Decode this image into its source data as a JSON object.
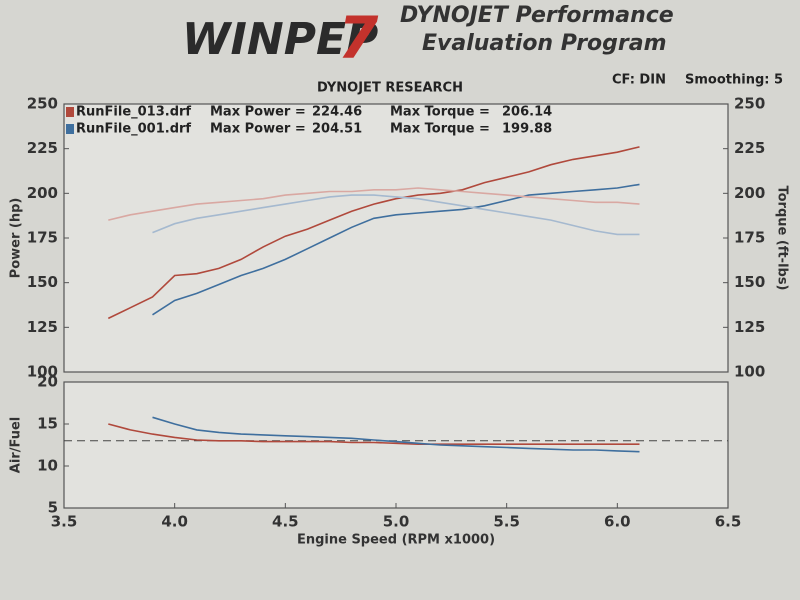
{
  "header": {
    "logo_word": "WINPEP",
    "logo_number": "7",
    "title_line1": "DYNOJET Performance",
    "title_line2": "Evaluation Program",
    "cf": "CF: DIN",
    "smoothing": "Smoothing: 5"
  },
  "chart_data": [
    {
      "type": "line",
      "title": "DYNOJET RESEARCH",
      "ylabel": "Power (hp)",
      "y2label": "Torque (ft-lbs)",
      "legend_labels": [
        "Max Power =",
        "Max Torque ="
      ],
      "x": [
        3.7,
        3.8,
        3.9,
        4.0,
        4.1,
        4.2,
        4.3,
        4.4,
        4.5,
        4.6,
        4.7,
        4.8,
        4.9,
        5.0,
        5.1,
        5.2,
        5.3,
        5.4,
        5.5,
        5.6,
        5.7,
        5.8,
        5.9,
        6.0,
        6.1
      ],
      "xlim": [
        3.5,
        6.5
      ],
      "ylim": [
        100,
        250
      ],
      "yticks": [
        100,
        125,
        150,
        175,
        200,
        225,
        250
      ],
      "y2lim": [
        100,
        250
      ],
      "y2ticks": [
        100,
        125,
        150,
        175,
        200,
        225,
        250
      ],
      "series": [
        {
          "name": "RunFile_013.drf",
          "max_power": 224.46,
          "max_torque": 206.14,
          "color": "#b0493c",
          "values": [
            130,
            136,
            142,
            154,
            155,
            158,
            163,
            170,
            176,
            180,
            185,
            190,
            194,
            197,
            199,
            200,
            202,
            206,
            209,
            212,
            216,
            219,
            221,
            223,
            226
          ]
        },
        {
          "name": "RunFile_001.drf",
          "max_power": 204.51,
          "max_torque": 199.88,
          "color": "#3f6f9e",
          "values": [
            null,
            null,
            132,
            140,
            144,
            149,
            154,
            158,
            163,
            169,
            175,
            181,
            186,
            188,
            189,
            190,
            191,
            193,
            196,
            199,
            200,
            201,
            202,
            203,
            205
          ]
        },
        {
          "color": "#d9a8a2",
          "axis": "y2",
          "values": [
            185,
            188,
            190,
            192,
            194,
            195,
            196,
            197,
            199,
            200,
            201,
            201,
            202,
            202,
            203,
            202,
            201,
            200,
            199,
            198,
            197,
            196,
            195,
            195,
            194
          ]
        },
        {
          "color": "#a5b9cf",
          "axis": "y2",
          "values": [
            null,
            null,
            178,
            183,
            186,
            188,
            190,
            192,
            194,
            196,
            198,
            199,
            199,
            198,
            197,
            195,
            193,
            191,
            189,
            187,
            185,
            182,
            179,
            177,
            177
          ]
        }
      ]
    },
    {
      "type": "line",
      "ylabel": "Air/Fuel",
      "xlabel": "Engine Speed (RPM x1000)",
      "x": [
        3.7,
        3.8,
        3.9,
        4.0,
        4.1,
        4.2,
        4.3,
        4.4,
        4.5,
        4.6,
        4.7,
        4.8,
        4.9,
        5.0,
        5.1,
        5.2,
        5.3,
        5.4,
        5.5,
        5.6,
        5.7,
        5.8,
        5.9,
        6.0,
        6.1
      ],
      "xlim": [
        3.5,
        6.5
      ],
      "xticks": [
        3.5,
        {
          "value": 4,
          "label": "4.0"
        },
        4.5,
        {
          "value": 5,
          "label": "5.0"
        },
        5.5,
        {
          "value": 6,
          "label": "6.0"
        },
        6.5
      ],
      "ylim": [
        5,
        20
      ],
      "yticks": [
        5,
        10,
        15,
        20
      ],
      "hline": 13,
      "series": [
        {
          "color": "#b0493c",
          "values": [
            15,
            14.3,
            13.8,
            13.4,
            13.1,
            13.0,
            13.0,
            12.9,
            12.9,
            12.9,
            12.9,
            12.8,
            12.8,
            12.7,
            12.6,
            12.6,
            12.6,
            12.6,
            12.6,
            12.6,
            12.6,
            12.6,
            12.6,
            12.6,
            12.6
          ]
        },
        {
          "color": "#3f6f9e",
          "values": [
            null,
            null,
            15.8,
            15.0,
            14.3,
            14.0,
            13.8,
            13.7,
            13.6,
            13.5,
            13.4,
            13.3,
            13.1,
            12.9,
            12.7,
            12.5,
            12.4,
            12.3,
            12.2,
            12.1,
            12.0,
            11.9,
            11.9,
            11.8,
            11.7
          ]
        }
      ]
    }
  ]
}
